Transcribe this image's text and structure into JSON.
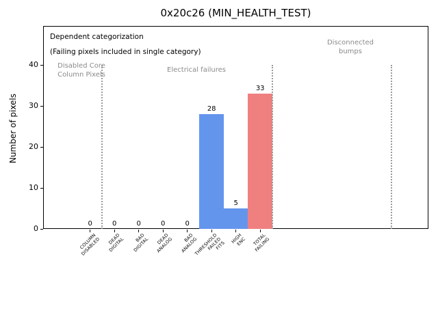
{
  "ui": {
    "title": "0x20c26 (MIN_HEALTH_TEST)",
    "ylabel": "Number of pixels",
    "note_line1": "Dependent categorization",
    "note_line2": "(Failing pixels included in single category)",
    "group_labels": {
      "left": {
        "line1": "Disabled Core",
        "line2": "Column Pixels"
      },
      "middle": {
        "line1": "Electrical failures"
      },
      "right": {
        "line1": "Disconnected",
        "line2": "bumps"
      }
    }
  },
  "colors": {
    "bar_blue": "#6495ed",
    "bar_red": "#f08080",
    "muted_text": "#8a8a8a",
    "separator_gray": "#999999"
  },
  "chart_data": {
    "type": "bar",
    "title": "0x20c26 (MIN_HEALTH_TEST)",
    "xlabel": "",
    "ylabel": "Number of pixels",
    "ylim": [
      0,
      49.5
    ],
    "yticks": [
      0,
      10,
      20,
      30,
      40
    ],
    "grid": false,
    "legend": false,
    "categories": [
      "COLUMN\nDISABLED",
      "DEAD\nDIGITAL",
      "BAD\nDIGITAL",
      "DEAD\nANALOG",
      "BAD\nANALOG",
      "THRESHOLD\nFAILED\nFITS",
      "HIGH\nENC",
      "TOTAL\nFAILING"
    ],
    "values": [
      0,
      0,
      0,
      0,
      0,
      28,
      5,
      33
    ],
    "bar_value_labels": [
      "0",
      "0",
      "0",
      "0",
      "0",
      "28",
      "5",
      "33"
    ],
    "bar_colors": [
      null,
      null,
      null,
      null,
      null,
      "#6495ed",
      "#6495ed",
      "#f08080"
    ],
    "group_separators": {
      "style": "dotted",
      "color": "#999999",
      "x_positions_category_units": [
        0.5,
        7.5,
        12.4
      ],
      "y_span": [
        0,
        40
      ]
    },
    "annotations": [
      {
        "text": "Dependent categorization",
        "color": "#000000"
      },
      {
        "text": "(Failing pixels included in single category)",
        "color": "#000000"
      },
      {
        "text": "Disabled Core\nColumn Pixels",
        "color": "#8a8a8a",
        "region": "left-of-first-separator"
      },
      {
        "text": "Electrical failures",
        "color": "#8a8a8a",
        "region": "between-separators-1-2"
      },
      {
        "text": "Disconnected\nbumps",
        "color": "#8a8a8a",
        "region": "between-separators-2-3"
      }
    ]
  }
}
